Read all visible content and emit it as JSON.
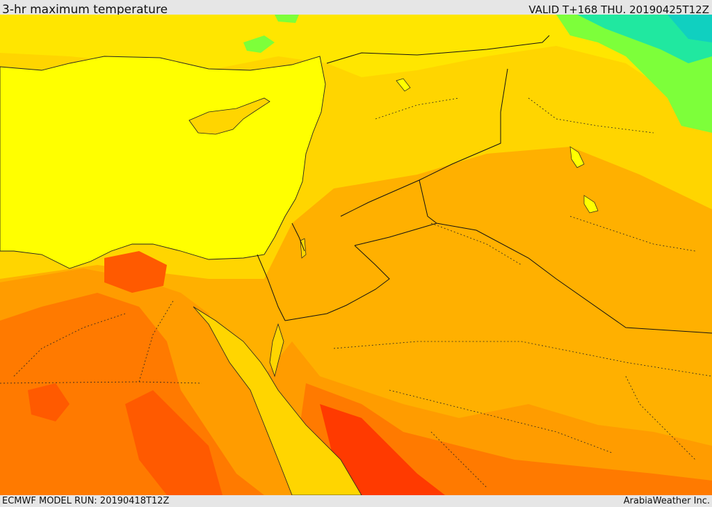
{
  "header": {
    "title": "3-hr maximum temperature",
    "valid": "VALID T+168 THU. 20190425T12Z"
  },
  "footer": {
    "model_run": "ECMWF MODEL RUN: 20190418T12Z",
    "credit": "ArabiaWeather Inc."
  },
  "palette": {
    "sea_yellow": "#ffff00",
    "light_yellow": "#ffe600",
    "gold": "#ffd500",
    "light_orange": "#ffb000",
    "orange": "#ff9c00",
    "deep_orange": "#ff7a00",
    "red_orange": "#ff5a00",
    "red": "#ff3a00",
    "green": "#7dff3a",
    "cyan": "#20e8a0",
    "teal": "#10d0c0"
  }
}
